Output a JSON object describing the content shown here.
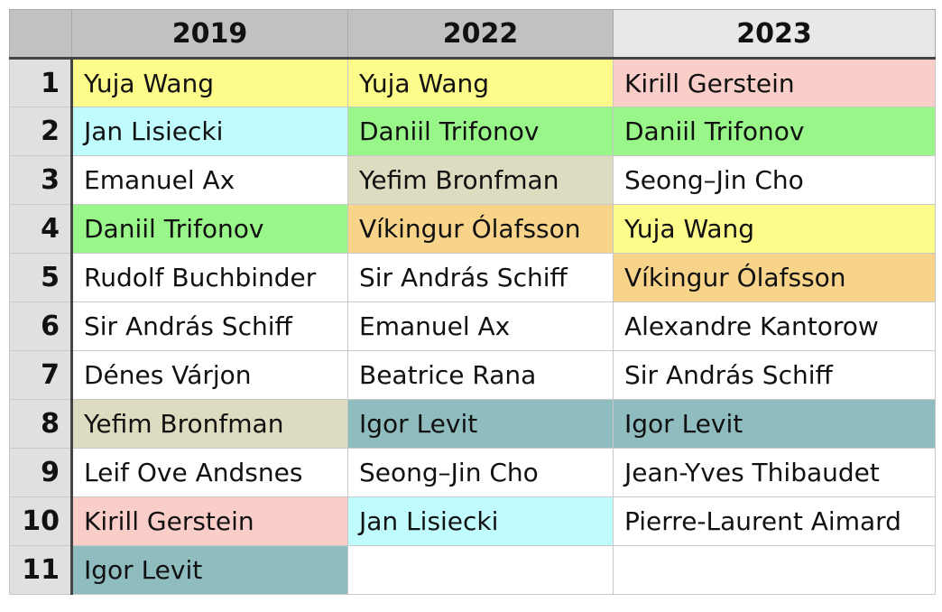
{
  "colors": {
    "yellow": "#fdfb8a",
    "cyan": "#c0fcfd",
    "green": "#99f78a",
    "beige": "#dddcc0",
    "orange": "#f8d48a",
    "pink": "#f9cdc8",
    "teal": "#8fbcbe",
    "none": "#ffffff"
  },
  "table": {
    "columns": [
      "2019",
      "2022",
      "2023"
    ],
    "rows": [
      {
        "rank": "1",
        "cells": [
          {
            "name": "Yuja Wang",
            "color": "yellow"
          },
          {
            "name": "Yuja Wang",
            "color": "yellow"
          },
          {
            "name": "Kirill Gerstein",
            "color": "pink"
          }
        ]
      },
      {
        "rank": "2",
        "cells": [
          {
            "name": "Jan Lisiecki",
            "color": "cyan"
          },
          {
            "name": "Daniil Trifonov",
            "color": "green"
          },
          {
            "name": "Daniil Trifonov",
            "color": "green"
          }
        ]
      },
      {
        "rank": "3",
        "cells": [
          {
            "name": "Emanuel Ax",
            "color": "none"
          },
          {
            "name": "Yefim Bronfman",
            "color": "beige"
          },
          {
            "name": "Seong–Jin Cho",
            "color": "none"
          }
        ]
      },
      {
        "rank": "4",
        "cells": [
          {
            "name": "Daniil Trifonov",
            "color": "green"
          },
          {
            "name": "Víkingur Ólafsson",
            "color": "orange"
          },
          {
            "name": "Yuja Wang",
            "color": "yellow"
          }
        ]
      },
      {
        "rank": "5",
        "cells": [
          {
            "name": "Rudolf Buchbinder",
            "color": "none"
          },
          {
            "name": "Sir András Schiff",
            "color": "none"
          },
          {
            "name": "Víkingur Ólafsson",
            "color": "orange"
          }
        ]
      },
      {
        "rank": "6",
        "cells": [
          {
            "name": "Sir András Schiff",
            "color": "none"
          },
          {
            "name": "Emanuel Ax",
            "color": "none"
          },
          {
            "name": "Alexandre Kantorow",
            "color": "none"
          }
        ]
      },
      {
        "rank": "7",
        "cells": [
          {
            "name": "Dénes Várjon",
            "color": "none"
          },
          {
            "name": "Beatrice Rana",
            "color": "none"
          },
          {
            "name": "Sir András Schiff",
            "color": "none"
          }
        ]
      },
      {
        "rank": "8",
        "cells": [
          {
            "name": "Yefim Bronfman",
            "color": "beige"
          },
          {
            "name": "Igor Levit",
            "color": "teal"
          },
          {
            "name": "Igor Levit",
            "color": "teal"
          }
        ]
      },
      {
        "rank": "9",
        "cells": [
          {
            "name": "Leif Ove Andsnes",
            "color": "none"
          },
          {
            "name": "Seong–Jin Cho",
            "color": "none"
          },
          {
            "name": "Jean-Yves Thibaudet",
            "color": "none"
          }
        ]
      },
      {
        "rank": "10",
        "cells": [
          {
            "name": "Kirill Gerstein",
            "color": "pink"
          },
          {
            "name": "Jan Lisiecki",
            "color": "cyan"
          },
          {
            "name": "Pierre-Laurent Aimard",
            "color": "none"
          }
        ]
      },
      {
        "rank": "11",
        "cells": [
          {
            "name": "Igor Levit",
            "color": "teal"
          },
          {
            "name": "",
            "color": "none"
          },
          {
            "name": "",
            "color": "none"
          }
        ]
      }
    ]
  }
}
